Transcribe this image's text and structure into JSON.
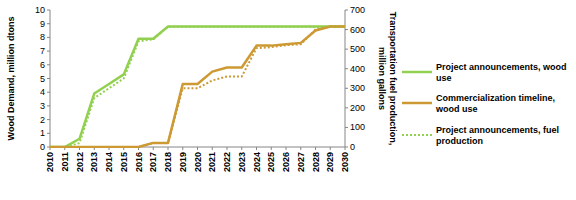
{
  "chart_data": {
    "type": "line",
    "x": [
      2010,
      2011,
      2012,
      2013,
      2014,
      2015,
      2016,
      2017,
      2018,
      2019,
      2020,
      2021,
      2022,
      2023,
      2024,
      2025,
      2026,
      2027,
      2028,
      2029,
      2030
    ],
    "xlim": [
      2010,
      2030
    ],
    "xticks": [
      2010,
      2011,
      2012,
      2013,
      2014,
      2015,
      2016,
      2017,
      2018,
      2019,
      2020,
      2021,
      2022,
      2023,
      2024,
      2025,
      2026,
      2027,
      2028,
      2029,
      2030
    ],
    "y_label": "Wood Demand, million dtons",
    "y2_label": "Transportation fuel production, million gallons",
    "ylim": [
      0,
      10
    ],
    "yticks": [
      0,
      1,
      2,
      3,
      4,
      5,
      6,
      7,
      8,
      9,
      10
    ],
    "y2lim": [
      0,
      700
    ],
    "y2ticks": [
      0,
      100,
      200,
      300,
      400,
      500,
      600,
      700
    ],
    "grid": false,
    "legend": "right",
    "series": [
      {
        "name": "Project announcements, wood use",
        "color": "#92d050",
        "line_style": "solid",
        "values": [
          0,
          0,
          0.6,
          3.9,
          4.6,
          5.3,
          7.9,
          7.9,
          8.8,
          8.8,
          8.8,
          8.8,
          8.8,
          8.8,
          8.8,
          8.8,
          8.8,
          8.8,
          8.8,
          8.8,
          8.8
        ]
      },
      {
        "name": "Commercialization timeline, wood use",
        "color": "#cc9933",
        "line_style": "solid",
        "values": [
          0,
          0,
          0,
          0,
          0,
          0,
          0,
          0.3,
          0.3,
          4.6,
          4.6,
          5.5,
          5.8,
          5.8,
          7.4,
          7.4,
          7.5,
          7.6,
          8.5,
          8.8,
          8.8
        ]
      },
      {
        "name": "Project announcements, fuel production",
        "color": "#92d050",
        "line_style": "dotted",
        "axis": "y2",
        "values": [
          0,
          0,
          20,
          250,
          300,
          350,
          540,
          550,
          615,
          615,
          615,
          615,
          615,
          615,
          615,
          615,
          615,
          615,
          615,
          615,
          615
        ]
      },
      {
        "color": "#cc9933",
        "line_style": "dotted",
        "axis": "y2",
        "values": [
          0,
          0,
          0,
          0,
          0,
          0,
          0,
          20,
          20,
          300,
          300,
          340,
          360,
          360,
          505,
          510,
          520,
          525,
          600,
          615,
          615
        ]
      }
    ]
  }
}
